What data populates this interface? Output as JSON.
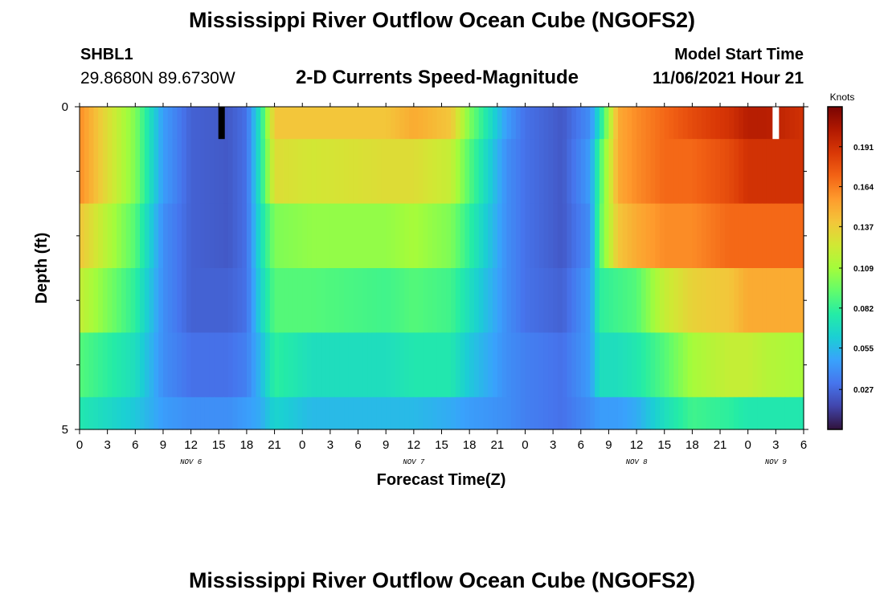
{
  "header": {
    "title": "Mississippi River Outflow Ocean Cube (NGOFS2)",
    "station_id": "SHBL1",
    "coordinates": "29.8680N  89.6730W",
    "subtitle": "2-D Currents Speed-Magnitude",
    "model_start_label": "Model Start Time",
    "model_start_value": "11/06/2021 Hour 21"
  },
  "footer": {
    "title": "Mississippi River Outflow Ocean Cube (NGOFS2)"
  },
  "colors": {
    "colormap": [
      "#30123b",
      "#4145ab",
      "#4675ed",
      "#39a2fc",
      "#1bcfd4",
      "#24eca6",
      "#61fc6c",
      "#a4fc3b",
      "#d1e834",
      "#f3c63a",
      "#fe9b2d",
      "#f36315",
      "#d93806",
      "#b11901",
      "#7a0403"
    ],
    "missing_low": "#000000",
    "missing_high": "#ffffff"
  },
  "chart_data": {
    "type": "heatmap",
    "title": "2-D Currents Speed-Magnitude",
    "xlabel": "Forecast Time(Z)",
    "ylabel": "Depth (ft)",
    "x_ticks": [
      "0",
      "3",
      "6",
      "9",
      "12",
      "15",
      "18",
      "21",
      "0",
      "3",
      "6",
      "9",
      "12",
      "15",
      "18",
      "21",
      "0",
      "3",
      "6",
      "9",
      "12",
      "15",
      "18",
      "21",
      "0",
      "3",
      "6"
    ],
    "day_labels": [
      {
        "text": "NOV 6",
        "hour": 12
      },
      {
        "text": "NOV 7",
        "hour": 36
      },
      {
        "text": "NOV 8",
        "hour": 60
      },
      {
        "text": "NOV 9",
        "hour": 75
      }
    ],
    "x_range_hours": [
      0,
      78
    ],
    "y_range_ft": [
      0,
      5
    ],
    "y_tick_labels": [
      {
        "value": 0,
        "text": "0"
      },
      {
        "value": 5,
        "text": "5"
      }
    ],
    "y_minor_ticks": [
      1,
      2,
      3,
      4
    ],
    "depth_levels_ft": [
      0,
      1,
      2,
      3,
      4
    ],
    "layer_thickness_ft": 1,
    "keyframes_hours": [
      0,
      6,
      9,
      12,
      16,
      18,
      19.5,
      21,
      25,
      33,
      36,
      40,
      42,
      46,
      48,
      52,
      55,
      56,
      58,
      60,
      63,
      66,
      70,
      72,
      74,
      78
    ],
    "keyframe_speeds_knots": [
      [
        0.16,
        0.1,
        0.045,
        0.025,
        0.022,
        0.03,
        0.075,
        0.14,
        0.14,
        0.14,
        0.15,
        0.14,
        0.1,
        0.045,
        0.03,
        0.022,
        0.04,
        0.07,
        0.15,
        0.16,
        0.17,
        0.18,
        0.19,
        0.2,
        0.2,
        0.19
      ],
      [
        0.16,
        0.1,
        0.045,
        0.025,
        0.022,
        0.03,
        0.075,
        0.13,
        0.125,
        0.13,
        0.13,
        0.12,
        0.09,
        0.04,
        0.03,
        0.022,
        0.045,
        0.085,
        0.15,
        0.16,
        0.17,
        0.17,
        0.18,
        0.19,
        0.19,
        0.19
      ],
      [
        0.14,
        0.09,
        0.04,
        0.025,
        0.022,
        0.03,
        0.07,
        0.1,
        0.105,
        0.105,
        0.11,
        0.1,
        0.08,
        0.04,
        0.03,
        0.022,
        0.04,
        0.09,
        0.14,
        0.15,
        0.16,
        0.16,
        0.17,
        0.17,
        0.17,
        0.17
      ],
      [
        0.12,
        0.08,
        0.04,
        0.025,
        0.025,
        0.03,
        0.065,
        0.09,
        0.09,
        0.085,
        0.09,
        0.085,
        0.07,
        0.04,
        0.03,
        0.025,
        0.045,
        0.08,
        0.085,
        0.09,
        0.12,
        0.135,
        0.14,
        0.15,
        0.15,
        0.15
      ],
      [
        0.09,
        0.07,
        0.04,
        0.03,
        0.03,
        0.035,
        0.055,
        0.08,
        0.07,
        0.07,
        0.075,
        0.075,
        0.06,
        0.04,
        0.035,
        0.03,
        0.045,
        0.07,
        0.07,
        0.075,
        0.09,
        0.11,
        0.12,
        0.12,
        0.115,
        0.11
      ],
      [
        0.075,
        0.06,
        0.045,
        0.04,
        0.04,
        0.045,
        0.05,
        0.065,
        0.055,
        0.055,
        0.055,
        0.05,
        0.045,
        0.04,
        0.035,
        0.03,
        0.04,
        0.045,
        0.045,
        0.05,
        0.07,
        0.085,
        0.08,
        0.075,
        0.075,
        0.075
      ]
    ],
    "missing_cells": [
      {
        "hour": 15.3,
        "layer": 0,
        "kind": "low"
      },
      {
        "hour": 75.0,
        "layer": 0,
        "kind": "high"
      }
    ],
    "colorbar": {
      "label": "Knots",
      "range": [
        0.0,
        0.218
      ],
      "ticks": [
        {
          "value": 0.027,
          "text": "0.027"
        },
        {
          "value": 0.055,
          "text": "0.055"
        },
        {
          "value": 0.082,
          "text": "0.082"
        },
        {
          "value": 0.109,
          "text": "0.109"
        },
        {
          "value": 0.137,
          "text": "0.137"
        },
        {
          "value": 0.164,
          "text": "0.164"
        },
        {
          "value": 0.191,
          "text": "0.191"
        }
      ]
    }
  }
}
